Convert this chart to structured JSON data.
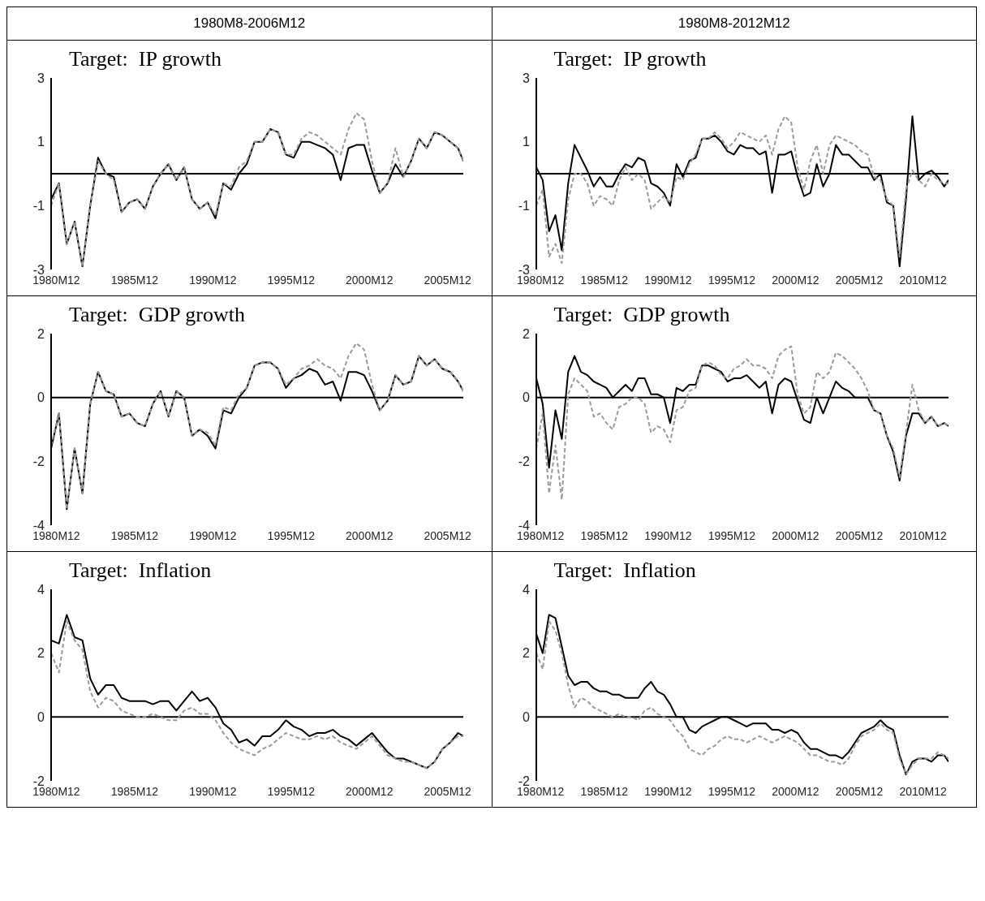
{
  "chart_data": [
    {
      "type": "line",
      "title": "Target:  IP growth",
      "subtitle": "1980M8-2006M12",
      "x": [
        "1980-08",
        "1981-02",
        "1981-08",
        "1982-02",
        "1982-08",
        "1983-02",
        "1983-08",
        "1984-02",
        "1984-08",
        "1985-02",
        "1985-08",
        "1986-02",
        "1986-08",
        "1987-02",
        "1987-08",
        "1988-02",
        "1988-08",
        "1989-02",
        "1989-08",
        "1990-02",
        "1990-08",
        "1991-02",
        "1991-08",
        "1992-02",
        "1992-08",
        "1993-02",
        "1993-08",
        "1994-02",
        "1994-08",
        "1995-02",
        "1995-08",
        "1996-02",
        "1996-08",
        "1997-02",
        "1997-08",
        "1998-02",
        "1998-08",
        "1999-02",
        "1999-08",
        "2000-02",
        "2000-08",
        "2001-02",
        "2001-08",
        "2002-02",
        "2002-08",
        "2003-02",
        "2003-08",
        "2004-02",
        "2004-08",
        "2005-02",
        "2005-08",
        "2006-02",
        "2006-08",
        "2006-12"
      ],
      "series": [
        {
          "color": "#000000",
          "line_style": "solid",
          "values": [
            -0.8,
            -0.3,
            -2.2,
            -1.5,
            -2.9,
            -1.0,
            0.5,
            0.0,
            -0.1,
            -1.2,
            -0.9,
            -0.8,
            -1.1,
            -0.4,
            0.0,
            0.3,
            -0.2,
            0.2,
            -0.8,
            -1.1,
            -0.9,
            -1.4,
            -0.3,
            -0.5,
            0.0,
            0.3,
            1.0,
            1.0,
            1.4,
            1.3,
            0.6,
            0.5,
            1.0,
            1.0,
            0.9,
            0.8,
            0.6,
            -0.2,
            0.8,
            0.9,
            0.9,
            0.1,
            -0.6,
            -0.3,
            0.3,
            -0.1,
            0.4,
            1.1,
            0.8,
            1.3,
            1.2,
            1.0,
            0.8,
            0.4
          ]
        },
        {
          "color": "#999999",
          "line_style": "dashed",
          "values": [
            -1.0,
            -0.3,
            -2.2,
            -1.5,
            -2.9,
            -1.0,
            0.4,
            0.0,
            -0.2,
            -1.2,
            -0.9,
            -0.8,
            -1.1,
            -0.4,
            0.0,
            0.3,
            -0.2,
            0.2,
            -0.8,
            -1.1,
            -0.9,
            -1.3,
            -0.3,
            -0.4,
            0.2,
            0.4,
            1.0,
            1.0,
            1.4,
            1.3,
            0.6,
            0.6,
            1.1,
            1.3,
            1.2,
            1.0,
            0.8,
            0.6,
            1.4,
            1.9,
            1.7,
            0.4,
            -0.6,
            -0.3,
            0.8,
            -0.1,
            0.4,
            1.1,
            0.8,
            1.3,
            1.2,
            1.0,
            0.8,
            0.4
          ]
        }
      ],
      "xlim": [
        "1980-08",
        "2006-12"
      ],
      "xticks": [
        {
          "value": "1980-12",
          "label": "1980M12"
        },
        {
          "value": "1985-12",
          "label": "1985M12"
        },
        {
          "value": "1990-12",
          "label": "1990M12"
        },
        {
          "value": "1995-12",
          "label": "1995M12"
        },
        {
          "value": "2000-12",
          "label": "2000M12"
        },
        {
          "value": "2005-12",
          "label": "2005M12"
        }
      ],
      "ylim": [
        -3,
        3
      ],
      "yticks": [
        -3,
        -1,
        1,
        3
      ],
      "ref_lines": [
        {
          "axis": "y",
          "value": 0
        }
      ],
      "marker": "none"
    },
    {
      "type": "line",
      "title": "Target:  IP growth",
      "subtitle": "1980M8-2012M12",
      "x": [
        "1980-08",
        "1981-02",
        "1981-08",
        "1982-02",
        "1982-08",
        "1983-02",
        "1983-08",
        "1984-02",
        "1984-08",
        "1985-02",
        "1985-08",
        "1986-02",
        "1986-08",
        "1987-02",
        "1987-08",
        "1988-02",
        "1988-08",
        "1989-02",
        "1989-08",
        "1990-02",
        "1990-08",
        "1991-02",
        "1991-08",
        "1992-02",
        "1992-08",
        "1993-02",
        "1993-08",
        "1994-02",
        "1994-08",
        "1995-02",
        "1995-08",
        "1996-02",
        "1996-08",
        "1997-02",
        "1997-08",
        "1998-02",
        "1998-08",
        "1999-02",
        "1999-08",
        "2000-02",
        "2000-08",
        "2001-02",
        "2001-08",
        "2002-02",
        "2002-08",
        "2003-02",
        "2003-08",
        "2004-02",
        "2004-08",
        "2005-02",
        "2005-08",
        "2006-02",
        "2006-08",
        "2007-02",
        "2007-08",
        "2008-02",
        "2008-08",
        "2009-02",
        "2009-08",
        "2010-02",
        "2010-08",
        "2011-02",
        "2011-08",
        "2012-02",
        "2012-08",
        "2012-12"
      ],
      "series": [
        {
          "color": "#000000",
          "line_style": "solid",
          "values": [
            0.2,
            -0.2,
            -1.8,
            -1.3,
            -2.4,
            -0.3,
            0.9,
            0.5,
            0.1,
            -0.4,
            -0.1,
            -0.4,
            -0.4,
            0.0,
            0.3,
            0.2,
            0.5,
            0.4,
            -0.3,
            -0.4,
            -0.6,
            -1.0,
            0.3,
            -0.1,
            0.4,
            0.5,
            1.1,
            1.1,
            1.2,
            1.0,
            0.7,
            0.6,
            0.9,
            0.8,
            0.8,
            0.6,
            0.7,
            -0.6,
            0.6,
            0.6,
            0.7,
            -0.1,
            -0.7,
            -0.6,
            0.3,
            -0.4,
            0.0,
            0.9,
            0.6,
            0.6,
            0.4,
            0.2,
            0.2,
            -0.2,
            0.0,
            -0.9,
            -1.0,
            -2.9,
            -0.8,
            1.8,
            -0.2,
            0.0,
            0.1,
            -0.1,
            -0.4,
            -0.2
          ]
        },
        {
          "color": "#999999",
          "line_style": "dashed",
          "values": [
            -1.0,
            -0.5,
            -2.6,
            -2.2,
            -2.8,
            -0.8,
            0.0,
            0.0,
            -0.3,
            -1.0,
            -0.7,
            -0.8,
            -1.0,
            -0.2,
            0.2,
            -0.2,
            0.0,
            -0.2,
            -1.1,
            -0.9,
            -0.7,
            -0.9,
            -0.1,
            -0.2,
            0.3,
            0.6,
            1.1,
            1.1,
            1.3,
            1.1,
            0.8,
            1.0,
            1.3,
            1.2,
            1.1,
            1.0,
            1.2,
            0.6,
            1.4,
            1.8,
            1.6,
            0.2,
            -0.5,
            0.4,
            0.9,
            0.0,
            0.9,
            1.2,
            1.1,
            1.0,
            0.9,
            0.7,
            0.6,
            -0.1,
            -0.2,
            -0.8,
            -1.0,
            -2.6,
            -0.5,
            0.1,
            -0.2,
            -0.4,
            0.0,
            -0.2,
            -0.3,
            -0.3
          ]
        }
      ],
      "xlim": [
        "1980-08",
        "2012-12"
      ],
      "xticks": [
        {
          "value": "1980-12",
          "label": "1980M12"
        },
        {
          "value": "1985-12",
          "label": "1985M12"
        },
        {
          "value": "1990-12",
          "label": "1990M12"
        },
        {
          "value": "1995-12",
          "label": "1995M12"
        },
        {
          "value": "2000-12",
          "label": "2000M12"
        },
        {
          "value": "2005-12",
          "label": "2005M12"
        },
        {
          "value": "2010-12",
          "label": "2010M12"
        }
      ],
      "ylim": [
        -3,
        3
      ],
      "yticks": [
        -3,
        -1,
        1,
        3
      ],
      "ref_lines": [
        {
          "axis": "y",
          "value": 0
        }
      ],
      "marker": "none"
    },
    {
      "type": "line",
      "title": "Target:  GDP growth",
      "x": [
        "1980-08",
        "1981-02",
        "1981-08",
        "1982-02",
        "1982-08",
        "1983-02",
        "1983-08",
        "1984-02",
        "1984-08",
        "1985-02",
        "1985-08",
        "1986-02",
        "1986-08",
        "1987-02",
        "1987-08",
        "1988-02",
        "1988-08",
        "1989-02",
        "1989-08",
        "1990-02",
        "1990-08",
        "1991-02",
        "1991-08",
        "1992-02",
        "1992-08",
        "1993-02",
        "1993-08",
        "1994-02",
        "1994-08",
        "1995-02",
        "1995-08",
        "1996-02",
        "1996-08",
        "1997-02",
        "1997-08",
        "1998-02",
        "1998-08",
        "1999-02",
        "1999-08",
        "2000-02",
        "2000-08",
        "2001-02",
        "2001-08",
        "2002-02",
        "2002-08",
        "2003-02",
        "2003-08",
        "2004-02",
        "2004-08",
        "2005-02",
        "2005-08",
        "2006-02",
        "2006-08",
        "2006-12"
      ],
      "series": [
        {
          "color": "#000000",
          "line_style": "solid",
          "values": [
            -1.6,
            -0.5,
            -3.5,
            -1.6,
            -3.0,
            -0.2,
            0.8,
            0.2,
            0.1,
            -0.6,
            -0.5,
            -0.8,
            -0.9,
            -0.2,
            0.2,
            -0.6,
            0.2,
            0.0,
            -1.2,
            -1.0,
            -1.2,
            -1.6,
            -0.4,
            -0.5,
            0.0,
            0.3,
            1.0,
            1.1,
            1.1,
            0.9,
            0.3,
            0.6,
            0.7,
            0.9,
            0.8,
            0.4,
            0.5,
            -0.1,
            0.8,
            0.8,
            0.7,
            0.2,
            -0.4,
            -0.1,
            0.7,
            0.4,
            0.5,
            1.3,
            1.0,
            1.2,
            0.9,
            0.8,
            0.5,
            0.2
          ]
        },
        {
          "color": "#999999",
          "line_style": "dashed",
          "values": [
            -1.5,
            -0.5,
            -3.5,
            -1.6,
            -3.0,
            -0.2,
            0.8,
            0.2,
            0.1,
            -0.6,
            -0.5,
            -0.8,
            -0.9,
            -0.2,
            0.2,
            -0.6,
            0.2,
            0.0,
            -1.2,
            -1.0,
            -1.1,
            -1.5,
            -0.3,
            -0.4,
            0.1,
            0.3,
            1.0,
            1.1,
            1.1,
            0.9,
            0.4,
            0.6,
            0.9,
            1.0,
            1.2,
            1.0,
            0.9,
            0.6,
            1.3,
            1.7,
            1.5,
            0.4,
            -0.4,
            -0.1,
            0.7,
            0.4,
            0.5,
            1.3,
            1.0,
            1.2,
            0.9,
            0.8,
            0.5,
            0.2
          ]
        }
      ],
      "xlim": [
        "1980-08",
        "2006-12"
      ],
      "xticks": [
        {
          "value": "1980-12",
          "label": "1980M12"
        },
        {
          "value": "1985-12",
          "label": "1985M12"
        },
        {
          "value": "1990-12",
          "label": "1990M12"
        },
        {
          "value": "1995-12",
          "label": "1995M12"
        },
        {
          "value": "2000-12",
          "label": "2000M12"
        },
        {
          "value": "2005-12",
          "label": "2005M12"
        }
      ],
      "ylim": [
        -4,
        2
      ],
      "yticks": [
        -4,
        -2,
        0,
        2
      ],
      "ref_lines": [
        {
          "axis": "y",
          "value": 0
        }
      ],
      "marker": "none"
    },
    {
      "type": "line",
      "title": "Target:  GDP growth",
      "x": [
        "1980-08",
        "1981-02",
        "1981-08",
        "1982-02",
        "1982-08",
        "1983-02",
        "1983-08",
        "1984-02",
        "1984-08",
        "1985-02",
        "1985-08",
        "1986-02",
        "1986-08",
        "1987-02",
        "1987-08",
        "1988-02",
        "1988-08",
        "1989-02",
        "1989-08",
        "1990-02",
        "1990-08",
        "1991-02",
        "1991-08",
        "1992-02",
        "1992-08",
        "1993-02",
        "1993-08",
        "1994-02",
        "1994-08",
        "1995-02",
        "1995-08",
        "1996-02",
        "1996-08",
        "1997-02",
        "1997-08",
        "1998-02",
        "1998-08",
        "1999-02",
        "1999-08",
        "2000-02",
        "2000-08",
        "2001-02",
        "2001-08",
        "2002-02",
        "2002-08",
        "2003-02",
        "2003-08",
        "2004-02",
        "2004-08",
        "2005-02",
        "2005-08",
        "2006-02",
        "2006-08",
        "2007-02",
        "2007-08",
        "2008-02",
        "2008-08",
        "2009-02",
        "2009-08",
        "2010-02",
        "2010-08",
        "2011-02",
        "2011-08",
        "2012-02",
        "2012-08",
        "2012-12"
      ],
      "series": [
        {
          "color": "#000000",
          "line_style": "solid",
          "values": [
            0.6,
            -0.2,
            -2.2,
            -0.4,
            -1.3,
            0.8,
            1.3,
            0.8,
            0.7,
            0.5,
            0.4,
            0.3,
            0.0,
            0.2,
            0.4,
            0.2,
            0.6,
            0.6,
            0.1,
            0.1,
            0.0,
            -0.8,
            0.3,
            0.2,
            0.4,
            0.4,
            1.0,
            1.0,
            0.9,
            0.8,
            0.5,
            0.6,
            0.6,
            0.7,
            0.5,
            0.3,
            0.5,
            -0.5,
            0.4,
            0.6,
            0.5,
            -0.1,
            -0.7,
            -0.8,
            0.0,
            -0.5,
            0.0,
            0.5,
            0.3,
            0.2,
            0.0,
            0.0,
            0.0,
            -0.4,
            -0.5,
            -1.2,
            -1.7,
            -2.6,
            -1.2,
            -0.5,
            -0.5,
            -0.8,
            -0.6,
            -0.9,
            -0.8,
            -0.9
          ]
        },
        {
          "color": "#999999",
          "line_style": "dashed",
          "values": [
            -1.6,
            -0.5,
            -3.0,
            -1.5,
            -3.2,
            0.1,
            0.6,
            0.4,
            0.2,
            -0.6,
            -0.5,
            -0.8,
            -1.0,
            -0.3,
            -0.2,
            0.0,
            0.0,
            -0.2,
            -1.1,
            -0.9,
            -1.0,
            -1.4,
            -0.4,
            -0.3,
            0.2,
            0.3,
            1.0,
            1.1,
            1.0,
            0.7,
            0.6,
            0.9,
            1.0,
            1.2,
            1.0,
            1.0,
            0.9,
            0.6,
            1.3,
            1.5,
            1.6,
            0.1,
            -0.5,
            -0.3,
            0.8,
            0.6,
            0.8,
            1.4,
            1.3,
            1.1,
            0.9,
            0.6,
            0.2,
            -0.4,
            -0.5,
            -1.2,
            -1.6,
            -2.5,
            -1.1,
            0.4,
            -0.4,
            -0.8,
            -0.6,
            -0.9,
            -0.8,
            -0.9
          ]
        }
      ],
      "xlim": [
        "1980-08",
        "2012-12"
      ],
      "xticks": [
        {
          "value": "1980-12",
          "label": "1980M12"
        },
        {
          "value": "1985-12",
          "label": "1985M12"
        },
        {
          "value": "1990-12",
          "label": "1990M12"
        },
        {
          "value": "1995-12",
          "label": "1995M12"
        },
        {
          "value": "2000-12",
          "label": "2000M12"
        },
        {
          "value": "2005-12",
          "label": "2005M12"
        },
        {
          "value": "2010-12",
          "label": "2010M12"
        }
      ],
      "ylim": [
        -4,
        2
      ],
      "yticks": [
        -4,
        -2,
        0,
        2
      ],
      "ref_lines": [
        {
          "axis": "y",
          "value": 0
        }
      ],
      "marker": "none"
    },
    {
      "type": "line",
      "title": "Target:  Inflation",
      "x": [
        "1980-08",
        "1981-02",
        "1981-08",
        "1982-02",
        "1982-08",
        "1983-02",
        "1983-08",
        "1984-02",
        "1984-08",
        "1985-02",
        "1985-08",
        "1986-02",
        "1986-08",
        "1987-02",
        "1987-08",
        "1988-02",
        "1988-08",
        "1989-02",
        "1989-08",
        "1990-02",
        "1990-08",
        "1991-02",
        "1991-08",
        "1992-02",
        "1992-08",
        "1993-02",
        "1993-08",
        "1994-02",
        "1994-08",
        "1995-02",
        "1995-08",
        "1996-02",
        "1996-08",
        "1997-02",
        "1997-08",
        "1998-02",
        "1998-08",
        "1999-02",
        "1999-08",
        "2000-02",
        "2000-08",
        "2001-02",
        "2001-08",
        "2002-02",
        "2002-08",
        "2003-02",
        "2003-08",
        "2004-02",
        "2004-08",
        "2005-02",
        "2005-08",
        "2006-02",
        "2006-08",
        "2006-12"
      ],
      "series": [
        {
          "color": "#000000",
          "line_style": "solid",
          "values": [
            2.4,
            2.3,
            3.2,
            2.5,
            2.4,
            1.2,
            0.7,
            1.0,
            1.0,
            0.6,
            0.5,
            0.5,
            0.5,
            0.4,
            0.5,
            0.5,
            0.2,
            0.5,
            0.8,
            0.5,
            0.6,
            0.3,
            -0.2,
            -0.4,
            -0.8,
            -0.7,
            -0.9,
            -0.6,
            -0.6,
            -0.4,
            -0.1,
            -0.3,
            -0.4,
            -0.6,
            -0.5,
            -0.5,
            -0.4,
            -0.6,
            -0.7,
            -0.9,
            -0.7,
            -0.5,
            -0.8,
            -1.1,
            -1.3,
            -1.3,
            -1.4,
            -1.5,
            -1.6,
            -1.4,
            -1.0,
            -0.8,
            -0.5,
            -0.6
          ]
        },
        {
          "color": "#999999",
          "line_style": "dashed",
          "values": [
            2.0,
            1.4,
            3.0,
            2.4,
            2.1,
            0.8,
            0.3,
            0.6,
            0.5,
            0.2,
            0.1,
            0.0,
            0.0,
            0.1,
            0.0,
            -0.1,
            -0.1,
            0.2,
            0.3,
            0.1,
            0.1,
            -0.1,
            -0.5,
            -0.8,
            -1.0,
            -1.1,
            -1.2,
            -1.0,
            -0.9,
            -0.7,
            -0.5,
            -0.6,
            -0.7,
            -0.7,
            -0.6,
            -0.7,
            -0.6,
            -0.8,
            -0.9,
            -1.0,
            -0.8,
            -0.6,
            -0.9,
            -1.2,
            -1.3,
            -1.4,
            -1.4,
            -1.5,
            -1.6,
            -1.4,
            -1.0,
            -0.8,
            -0.6,
            -0.6
          ]
        }
      ],
      "xlim": [
        "1980-08",
        "2006-12"
      ],
      "xticks": [
        {
          "value": "1980-12",
          "label": "1980M12"
        },
        {
          "value": "1985-12",
          "label": "1985M12"
        },
        {
          "value": "1990-12",
          "label": "1990M12"
        },
        {
          "value": "1995-12",
          "label": "1995M12"
        },
        {
          "value": "2000-12",
          "label": "2000M12"
        },
        {
          "value": "2005-12",
          "label": "2005M12"
        }
      ],
      "ylim": [
        -2,
        4
      ],
      "yticks": [
        -2,
        0,
        2,
        4
      ],
      "ref_lines": [
        {
          "axis": "y",
          "value": 0
        }
      ],
      "marker": "none"
    },
    {
      "type": "line",
      "title": "Target:  Inflation",
      "x": [
        "1980-08",
        "1981-02",
        "1981-08",
        "1982-02",
        "1982-08",
        "1983-02",
        "1983-08",
        "1984-02",
        "1984-08",
        "1985-02",
        "1985-08",
        "1986-02",
        "1986-08",
        "1987-02",
        "1987-08",
        "1988-02",
        "1988-08",
        "1989-02",
        "1989-08",
        "1990-02",
        "1990-08",
        "1991-02",
        "1991-08",
        "1992-02",
        "1992-08",
        "1993-02",
        "1993-08",
        "1994-02",
        "1994-08",
        "1995-02",
        "1995-08",
        "1996-02",
        "1996-08",
        "1997-02",
        "1997-08",
        "1998-02",
        "1998-08",
        "1999-02",
        "1999-08",
        "2000-02",
        "2000-08",
        "2001-02",
        "2001-08",
        "2002-02",
        "2002-08",
        "2003-02",
        "2003-08",
        "2004-02",
        "2004-08",
        "2005-02",
        "2005-08",
        "2006-02",
        "2006-08",
        "2007-02",
        "2007-08",
        "2008-02",
        "2008-08",
        "2009-02",
        "2009-08",
        "2010-02",
        "2010-08",
        "2011-02",
        "2011-08",
        "2012-02",
        "2012-08",
        "2012-12"
      ],
      "series": [
        {
          "color": "#000000",
          "line_style": "solid",
          "values": [
            2.6,
            2.0,
            3.2,
            3.1,
            2.2,
            1.3,
            1.0,
            1.1,
            1.1,
            0.9,
            0.8,
            0.8,
            0.7,
            0.7,
            0.6,
            0.6,
            0.6,
            0.9,
            1.1,
            0.8,
            0.7,
            0.4,
            0.0,
            0.0,
            -0.4,
            -0.5,
            -0.3,
            -0.2,
            -0.1,
            0.0,
            0.0,
            -0.1,
            -0.2,
            -0.3,
            -0.2,
            -0.2,
            -0.2,
            -0.4,
            -0.4,
            -0.5,
            -0.4,
            -0.5,
            -0.8,
            -1.0,
            -1.0,
            -1.1,
            -1.2,
            -1.2,
            -1.3,
            -1.1,
            -0.8,
            -0.5,
            -0.4,
            -0.3,
            -0.1,
            -0.3,
            -0.4,
            -1.2,
            -1.8,
            -1.4,
            -1.3,
            -1.3,
            -1.4,
            -1.2,
            -1.2,
            -1.4
          ]
        },
        {
          "color": "#999999",
          "line_style": "dashed",
          "values": [
            2.0,
            1.5,
            3.0,
            2.7,
            2.0,
            1.0,
            0.3,
            0.6,
            0.5,
            0.3,
            0.2,
            0.1,
            0.0,
            0.1,
            0.0,
            0.0,
            -0.1,
            0.2,
            0.3,
            0.1,
            0.0,
            -0.1,
            -0.4,
            -0.6,
            -1.0,
            -1.1,
            -1.2,
            -1.0,
            -0.9,
            -0.7,
            -0.6,
            -0.7,
            -0.7,
            -0.8,
            -0.7,
            -0.6,
            -0.7,
            -0.8,
            -0.7,
            -0.6,
            -0.7,
            -0.8,
            -1.0,
            -1.2,
            -1.2,
            -1.3,
            -1.4,
            -1.4,
            -1.5,
            -1.3,
            -0.9,
            -0.6,
            -0.5,
            -0.4,
            -0.2,
            -0.4,
            -0.5,
            -1.3,
            -1.8,
            -1.5,
            -1.3,
            -1.3,
            -1.3,
            -1.1,
            -1.2,
            -1.3
          ]
        }
      ],
      "xlim": [
        "1980-08",
        "2012-12"
      ],
      "xticks": [
        {
          "value": "1980-12",
          "label": "1980M12"
        },
        {
          "value": "1985-12",
          "label": "1985M12"
        },
        {
          "value": "1990-12",
          "label": "1990M12"
        },
        {
          "value": "1995-12",
          "label": "1995M12"
        },
        {
          "value": "2000-12",
          "label": "2000M12"
        },
        {
          "value": "2005-12",
          "label": "2005M12"
        },
        {
          "value": "2010-12",
          "label": "2010M12"
        }
      ],
      "ylim": [
        -2,
        4
      ],
      "yticks": [
        -2,
        0,
        2,
        4
      ],
      "ref_lines": [
        {
          "axis": "y",
          "value": 0
        }
      ],
      "marker": "none"
    }
  ]
}
